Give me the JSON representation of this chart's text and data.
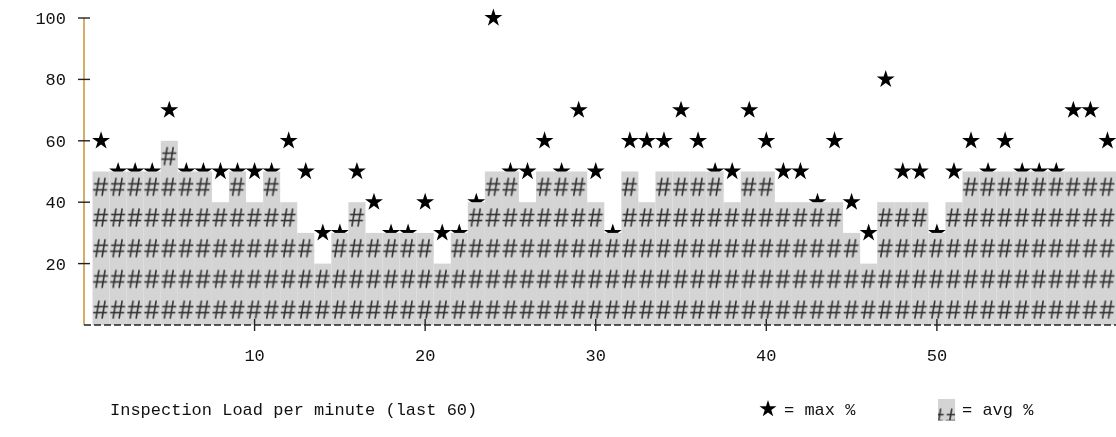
{
  "chart_data": {
    "type": "bar",
    "xlabel": "Inspection Load per minute (last 60)",
    "x": [
      1,
      2,
      3,
      4,
      5,
      6,
      7,
      8,
      9,
      10,
      11,
      12,
      13,
      14,
      15,
      16,
      17,
      18,
      19,
      20,
      21,
      22,
      23,
      24,
      25,
      26,
      27,
      28,
      29,
      30,
      31,
      32,
      33,
      34,
      35,
      36,
      37,
      38,
      39,
      40,
      41,
      42,
      43,
      44,
      45,
      46,
      47,
      48,
      49,
      50,
      51,
      52,
      53,
      54,
      55,
      56,
      57,
      58,
      59,
      60
    ],
    "series": [
      {
        "name": "= max %",
        "type": "scatter",
        "marker": "star",
        "color": "#000000",
        "values": [
          60,
          50,
          50,
          50,
          70,
          50,
          50,
          50,
          50,
          50,
          50,
          60,
          50,
          30,
          30,
          50,
          40,
          30,
          30,
          40,
          30,
          30,
          40,
          100,
          50,
          50,
          60,
          50,
          70,
          50,
          30,
          60,
          60,
          60,
          70,
          60,
          50,
          50,
          70,
          60,
          50,
          50,
          40,
          60,
          40,
          30,
          80,
          50,
          50,
          30,
          50,
          60,
          50,
          60,
          50,
          50,
          50,
          70,
          70,
          60
        ]
      },
      {
        "name": "= avg %",
        "color": "#d4d4d4",
        "values": [
          50,
          50,
          50,
          50,
          60,
          50,
          50,
          40,
          50,
          40,
          50,
          40,
          30,
          20,
          30,
          40,
          30,
          30,
          30,
          30,
          20,
          30,
          40,
          50,
          50,
          40,
          50,
          50,
          50,
          40,
          30,
          50,
          40,
          50,
          50,
          50,
          50,
          40,
          50,
          50,
          40,
          40,
          40,
          40,
          30,
          20,
          40,
          40,
          40,
          30,
          40,
          50,
          50,
          50,
          50,
          50,
          50,
          50,
          50,
          50
        ]
      }
    ],
    "xlim": [
      0,
      60.5
    ],
    "xticks": [
      10,
      20,
      30,
      40,
      50
    ],
    "ylim": [
      0,
      100
    ],
    "yticks": [
      20,
      40,
      60,
      80,
      100
    ],
    "grid": false,
    "legend": "bottom right"
  }
}
